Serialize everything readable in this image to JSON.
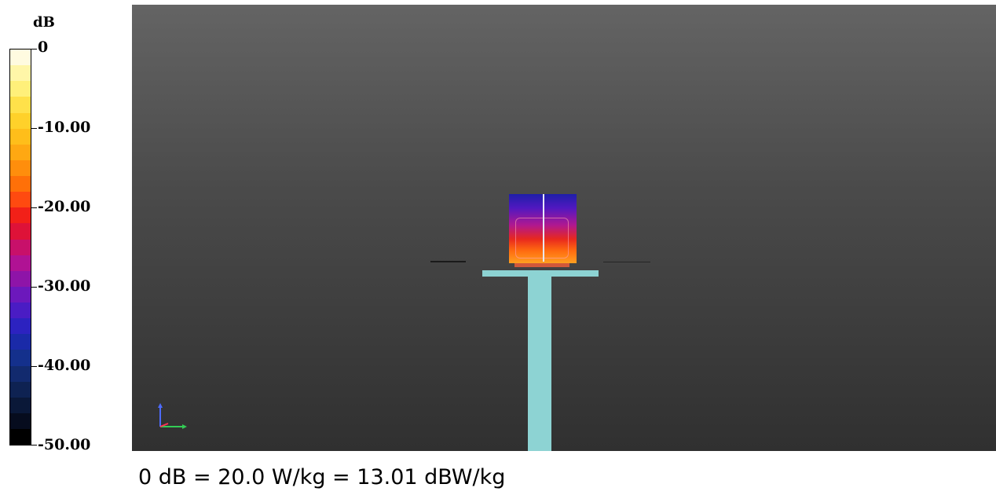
{
  "legend": {
    "unit": "dB",
    "ticks": [
      "0",
      "-10.00",
      "-20.00",
      "-30.00",
      "-40.00",
      "-50.00"
    ],
    "colors": [
      "#fffbe0",
      "#fff6a8",
      "#fff07a",
      "#ffe14a",
      "#ffd12a",
      "#ffbe1a",
      "#ffa812",
      "#ff8e0c",
      "#ff7008",
      "#ff4a10",
      "#f22018",
      "#de1238",
      "#c8106a",
      "#b01294",
      "#8e14a8",
      "#6c18bc",
      "#4a1cc4",
      "#2c22c0",
      "#1a2aa8",
      "#14308c",
      "#122a6e",
      "#0e2252",
      "#0a1838",
      "#060c1e",
      "#000000"
    ]
  },
  "viewport": {
    "background_top": "#646464",
    "background_bottom": "#303030",
    "structure_color": "#8dd3d3",
    "axes_icon": "xyz-axes-icon"
  },
  "footer": {
    "reference_text": "0 dB = 20.0 W/kg = 13.01 dBW/kg"
  }
}
